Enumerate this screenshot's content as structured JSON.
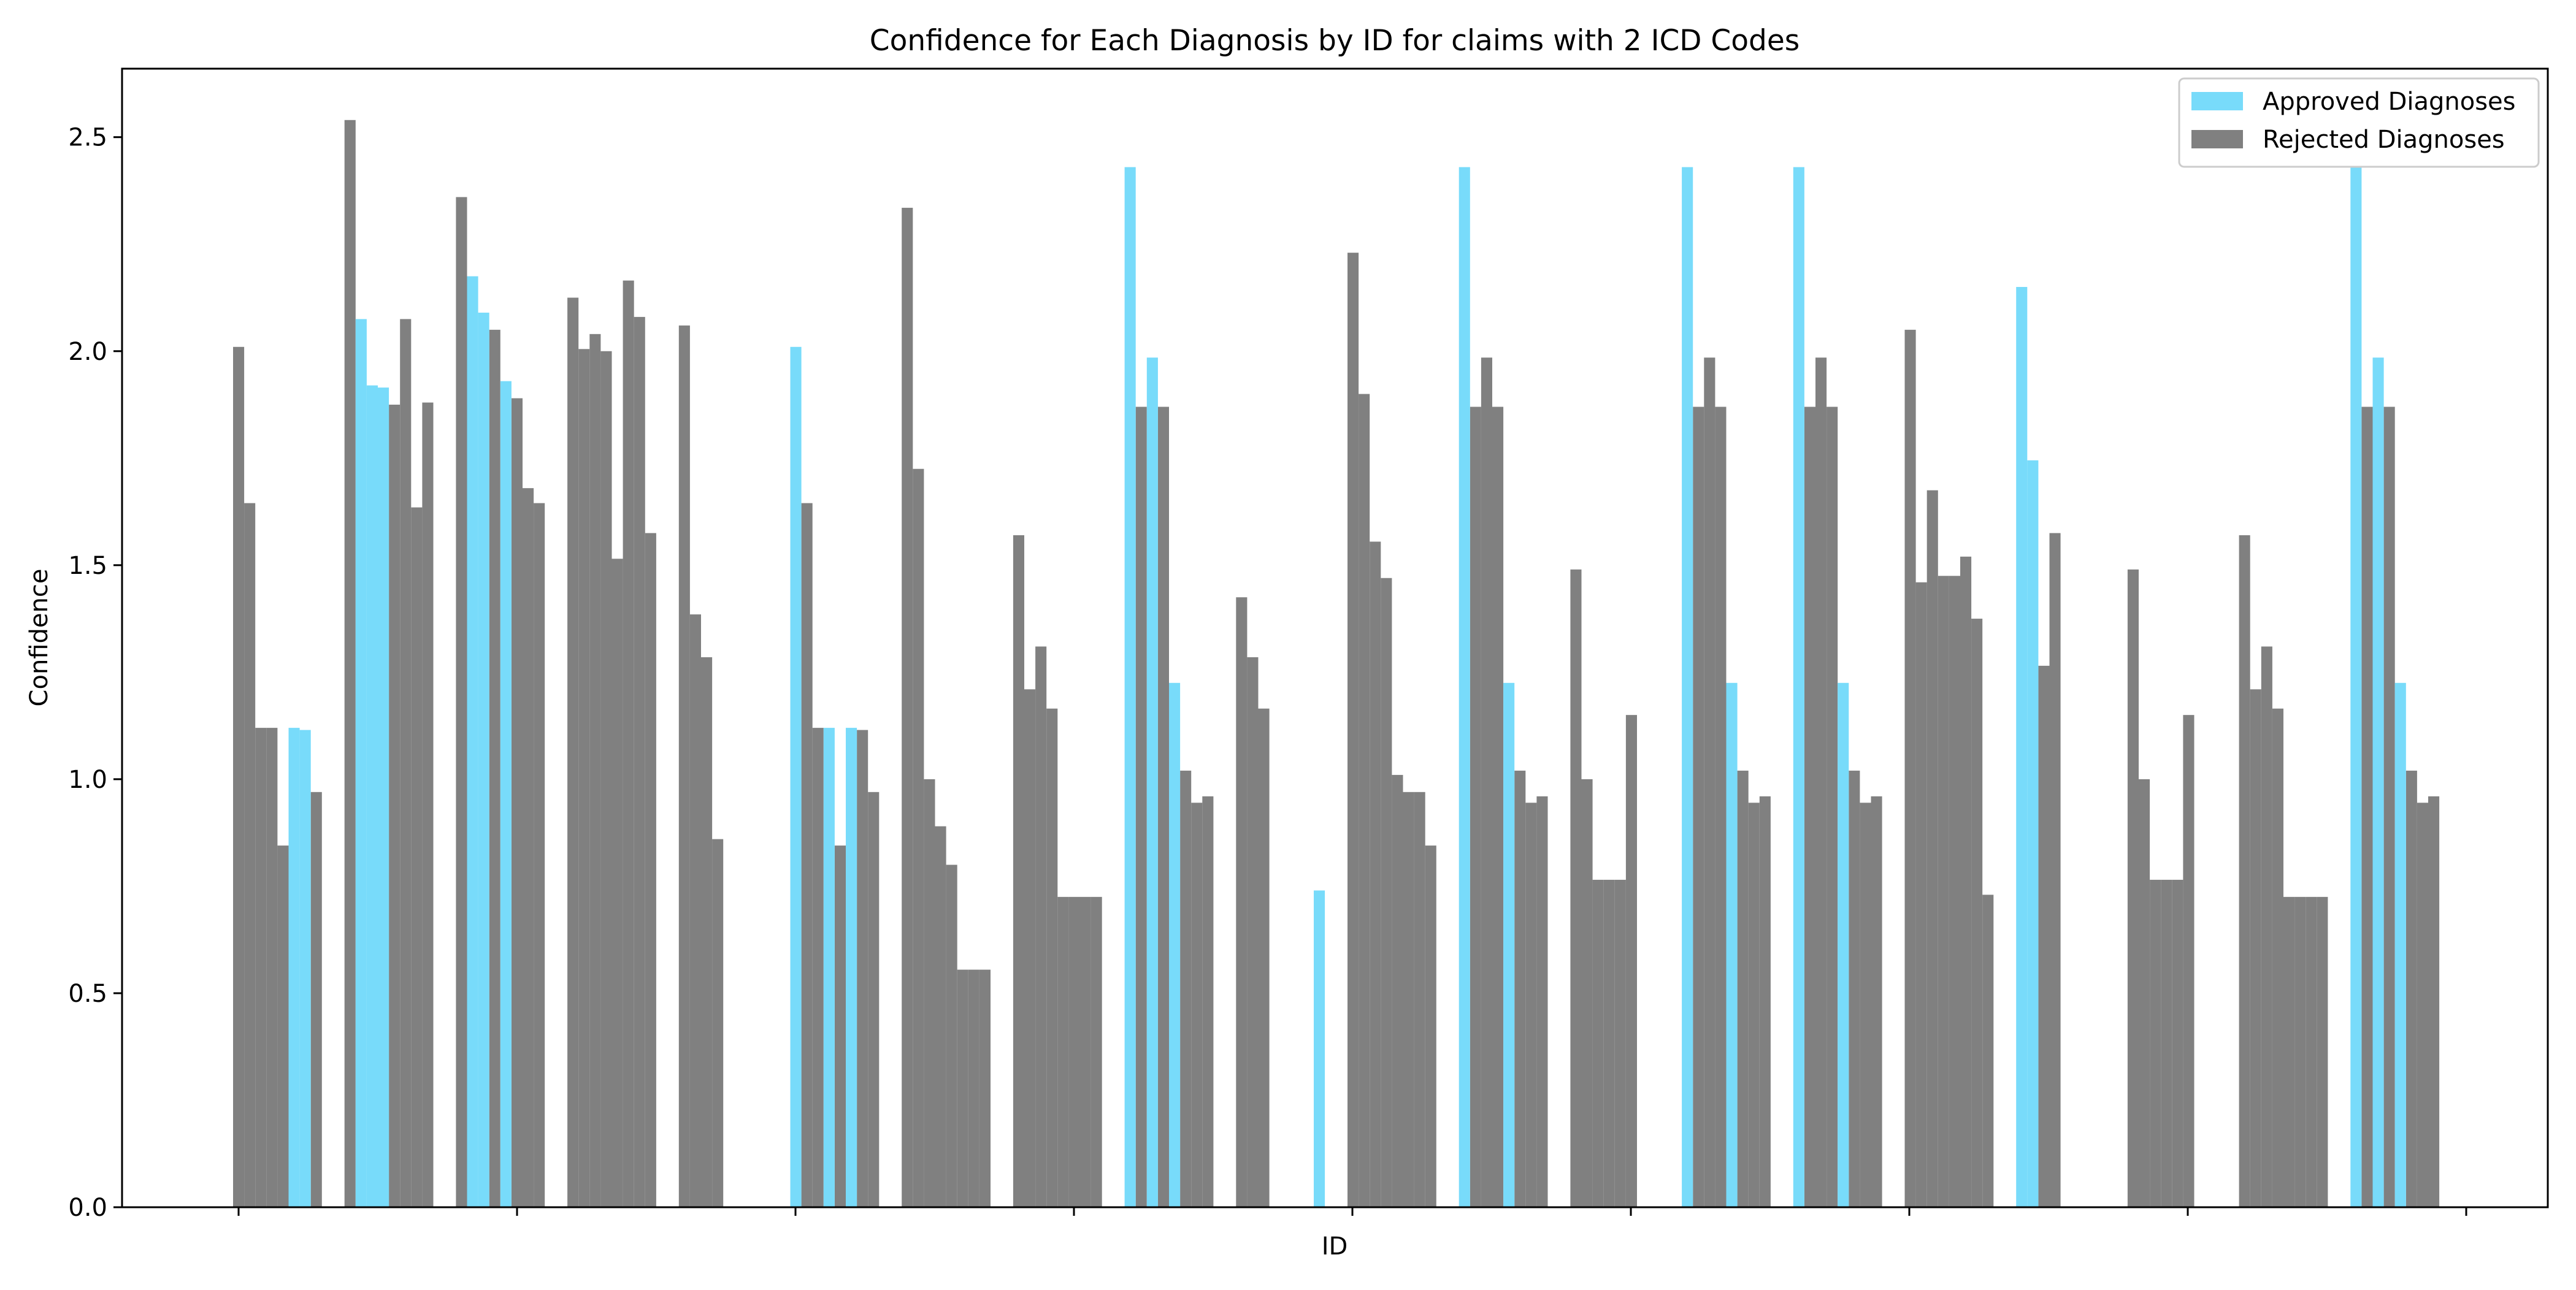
{
  "chart_data": {
    "type": "bar",
    "title": "Confidence for Each Diagnosis by ID for claims with 2 ICD Codes",
    "xlabel": "ID",
    "ylabel": "Confidence",
    "ylim": [
      0,
      2.66
    ],
    "yticks": [
      0.0,
      0.5,
      1.0,
      1.5,
      2.0,
      2.5
    ],
    "ytick_labels": [
      "0.0",
      "0.5",
      "1.0",
      "1.5",
      "2.0",
      "2.5"
    ],
    "x_tick_count": 9,
    "grid": false,
    "legend_position": "top-right",
    "colors": {
      "approved": "#78dbfa",
      "rejected": "#808080",
      "axis": "#000000"
    },
    "series": [
      {
        "name": "Approved Diagnoses",
        "values": [
          [
            0,
            0,
            0,
            0,
            0,
            1.12,
            1.115,
            0
          ],
          [
            0,
            2.075,
            1.92,
            1.915,
            0,
            0,
            0,
            0
          ],
          [
            0,
            2.175,
            2.09,
            0,
            1.93,
            0,
            0,
            0
          ],
          [
            0,
            0,
            0,
            0,
            0,
            0,
            0,
            0
          ],
          [
            0,
            0,
            0,
            0,
            0,
            0,
            0,
            0
          ],
          [
            2.01,
            0,
            0,
            1.12,
            0,
            1.12,
            0,
            0
          ],
          [
            0,
            0,
            0,
            0,
            0,
            0,
            0,
            0
          ],
          [
            0,
            0,
            0,
            0,
            0,
            0,
            0,
            0
          ],
          [
            2.43,
            0,
            1.985,
            0,
            1.225,
            0,
            0,
            0
          ],
          [
            0,
            0,
            0,
            0,
            0,
            0,
            0,
            0.74
          ],
          [
            0,
            0,
            0,
            0,
            0,
            0,
            0,
            0
          ],
          [
            2.43,
            0,
            0,
            0,
            1.225,
            0,
            0,
            0
          ],
          [
            0,
            0,
            0,
            0,
            0,
            0,
            0,
            0
          ],
          [
            2.43,
            0,
            0,
            0,
            1.225,
            0,
            0,
            0
          ],
          [
            2.43,
            0,
            0,
            0,
            1.225,
            0,
            0,
            0
          ],
          [
            0,
            0,
            0,
            0,
            0,
            0,
            0,
            0
          ],
          [
            2.15,
            1.745,
            0,
            0,
            0,
            0,
            0,
            0
          ],
          [
            0,
            0,
            0,
            0,
            0,
            0,
            0,
            0
          ],
          [
            0,
            0,
            0,
            0,
            0,
            0,
            0,
            0
          ],
          [
            2.43,
            0,
            1.985,
            0,
            1.225,
            0,
            0,
            0
          ]
        ]
      },
      {
        "name": "Rejected Diagnoses",
        "values": [
          [
            2.01,
            1.645,
            1.12,
            1.12,
            0.845,
            0,
            0,
            0.97
          ],
          [
            2.54,
            0,
            0,
            0,
            1.875,
            2.075,
            1.635,
            1.88
          ],
          [
            2.36,
            0,
            0,
            2.05,
            0,
            1.89,
            1.68,
            1.645
          ],
          [
            2.125,
            2.005,
            2.04,
            2.0,
            1.515,
            2.165,
            2.08,
            1.575
          ],
          [
            2.06,
            1.385,
            1.285,
            0.86,
            0,
            0,
            0,
            0
          ],
          [
            0,
            1.645,
            1.12,
            0,
            0.845,
            0,
            1.115,
            0.97
          ],
          [
            2.335,
            1.725,
            1.0,
            0.89,
            0.8,
            0.555,
            0.555,
            0.555
          ],
          [
            1.57,
            1.21,
            1.31,
            1.165,
            0.725,
            0.725,
            0.725,
            0.725
          ],
          [
            0,
            1.87,
            0,
            1.87,
            0,
            1.02,
            0.945,
            0.96
          ],
          [
            1.425,
            1.285,
            1.165,
            0,
            0,
            0,
            0,
            0
          ],
          [
            2.23,
            1.9,
            1.555,
            1.47,
            1.01,
            0.97,
            0.97,
            0.845
          ],
          [
            0,
            1.87,
            1.985,
            1.87,
            0,
            1.02,
            0.945,
            0.96
          ],
          [
            1.49,
            1.0,
            0.765,
            0.765,
            0.765,
            1.15,
            0,
            0
          ],
          [
            0,
            1.87,
            1.985,
            1.87,
            0,
            1.02,
            0.945,
            0.96
          ],
          [
            0,
            1.87,
            1.985,
            1.87,
            0,
            1.02,
            0.945,
            0.96
          ],
          [
            2.05,
            1.46,
            1.675,
            1.475,
            1.475,
            1.52,
            1.375,
            0.73
          ],
          [
            0,
            0,
            1.265,
            1.575,
            0,
            0,
            0,
            0
          ],
          [
            1.49,
            1.0,
            0.765,
            0.765,
            0.765,
            1.15,
            0,
            0
          ],
          [
            1.57,
            1.21,
            1.31,
            1.165,
            0.725,
            0.725,
            0.725,
            0.725
          ],
          [
            0,
            1.87,
            0,
            1.87,
            0,
            1.02,
            0.945,
            0.96
          ]
        ]
      }
    ]
  }
}
